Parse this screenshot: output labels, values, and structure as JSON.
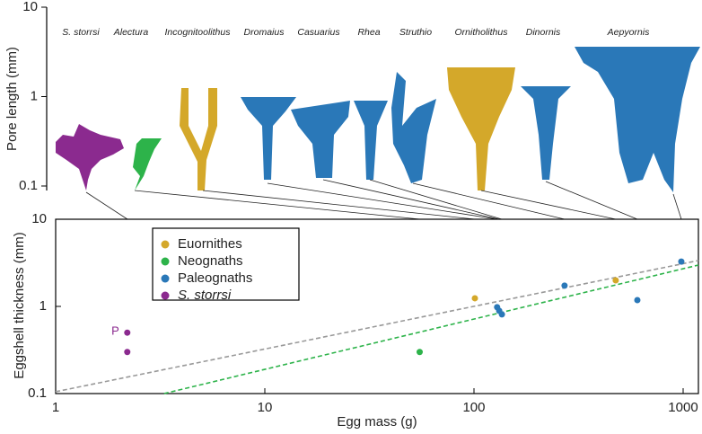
{
  "chart_data": [
    {
      "type": "figure",
      "ylabel": "Pore length (mm)",
      "ylim": [
        0.1,
        10
      ],
      "yticks": [
        0.1,
        1,
        10
      ],
      "yscale": "log",
      "labels": [
        "S. storrsi",
        "Alectura",
        "Incognitoolithus",
        "Dromaius",
        "Casuarius",
        "Rhea",
        "Struthio",
        "Ornitholithus",
        "Dinornis",
        "Aepyornis"
      ]
    },
    {
      "type": "scatter",
      "xlabel": "Egg mass (g)",
      "ylabel": "Eggshell thickness (mm)",
      "xscale": "log",
      "yscale": "log",
      "xlim": [
        1,
        1183
      ],
      "ylim": [
        0.1,
        10
      ],
      "xticks": [
        1,
        10,
        100,
        1000
      ],
      "yticks": [
        0.1,
        1,
        10
      ],
      "series": [
        {
          "name": "Euornithes",
          "color": "#d4a82a",
          "x": [
            101,
            476
          ],
          "values": [
            1.24,
            1.99
          ]
        },
        {
          "name": "Neognaths",
          "color": "#2db34a",
          "x": [
            55
          ],
          "values": [
            0.3
          ]
        },
        {
          "name": "Paleognaths",
          "color": "#2a78b8",
          "x": [
            129,
            132,
            136,
            271,
            604,
            980
          ],
          "values": [
            0.98,
            0.89,
            0.81,
            1.73,
            1.18,
            3.27
          ]
        },
        {
          "name": "S. storrsi",
          "color": "#8b2a8f",
          "x": [
            2.2,
            2.2
          ],
          "values": [
            0.5,
            0.3
          ]
        }
      ],
      "trendlines": [
        {
          "color": "#999999",
          "x": [
            1,
            1183
          ],
          "values": [
            0.105,
            3.36
          ]
        },
        {
          "color": "#2db34a",
          "x": [
            3.3,
            1183
          ],
          "values": [
            0.1,
            2.98
          ]
        }
      ],
      "annotation": "P"
    }
  ]
}
